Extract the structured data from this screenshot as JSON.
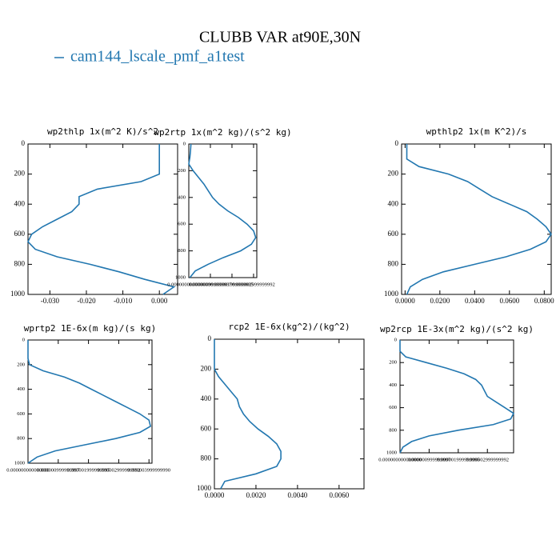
{
  "title": "CLUBB VAR at90E,30N",
  "legend": {
    "name": "cam144_lscale_pmf_a1test",
    "color": "#2277b0"
  },
  "chart_data": [
    {
      "type": "line",
      "title": "wp2thlp   1x(m^2 K)/s^2",
      "color": "#2277b0",
      "levels": [
        0,
        50,
        100,
        150,
        200,
        250,
        300,
        350,
        400,
        450,
        500,
        550,
        600,
        650,
        700,
        750,
        800,
        850,
        900,
        950,
        1000
      ],
      "values": [
        0.0,
        0.0,
        0.0,
        0.0,
        0.0,
        -0.005,
        -0.017,
        -0.022,
        -0.022,
        -0.024,
        -0.028,
        -0.032,
        -0.035,
        -0.036,
        -0.034,
        -0.028,
        -0.019,
        -0.011,
        -0.004,
        0.004,
        0.001
      ],
      "xlim": [
        -0.036,
        0.005
      ],
      "xticks": [
        {
          "value": -0.03,
          "label": "-0.030"
        },
        {
          "value": -0.02,
          "label": "-0.020"
        },
        {
          "value": -0.01,
          "label": "-0.010"
        },
        {
          "value": 0,
          "label": "0.000"
        }
      ],
      "ylim": [
        0,
        1000
      ],
      "y_inverted": true,
      "yticks": [
        0,
        200,
        400,
        600,
        800,
        1000
      ]
    },
    {
      "type": "line",
      "title": "wp2rtp  1x(m^2 kg)/(s^2 kg)",
      "color": "#2277b0",
      "levels": [
        0,
        50,
        100,
        150,
        200,
        250,
        300,
        350,
        400,
        450,
        500,
        550,
        600,
        650,
        700,
        750,
        800,
        850,
        900,
        950,
        1000
      ],
      "values": [
        1e-07,
        8e-08,
        5e-08,
        0,
        2e-07,
        4.5e-07,
        7e-07,
        9e-07,
        1.1e-06,
        1.4e-06,
        1.8e-06,
        2.3e-06,
        2.7e-06,
        3e-06,
        3.1e-06,
        2.9e-06,
        2.4e-06,
        1.6e-06,
        9e-07,
        3e-07,
        5e-08
      ],
      "xlim": [
        0,
        3.15e-06
      ],
      "xticks": [
        {
          "value": 0,
          "label": "0.000000000000000"
        },
        {
          "value": 1e-06,
          "label": "0.000000999999997"
        },
        {
          "value": 2e-06,
          "label": "0.000001999999995"
        },
        {
          "value": 3e-06,
          "label": "0.000002999999992"
        }
      ],
      "ylim": [
        0,
        1000
      ],
      "y_inverted": true,
      "yticks": [
        0,
        200,
        400,
        600,
        800,
        1000
      ]
    },
    {
      "type": "line",
      "title": "wpthlp2   1x(m K^2)/s",
      "color": "#2277b0",
      "levels": [
        0,
        50,
        100,
        150,
        200,
        250,
        300,
        350,
        400,
        450,
        500,
        550,
        600,
        650,
        700,
        750,
        800,
        850,
        900,
        950,
        1000
      ],
      "values": [
        0.001,
        0.001,
        0.001,
        0.008,
        0.025,
        0.036,
        0.043,
        0.05,
        0.06,
        0.07,
        0.076,
        0.081,
        0.084,
        0.081,
        0.072,
        0.058,
        0.04,
        0.022,
        0.01,
        0.003,
        0.001
      ],
      "xlim": [
        -0.002,
        0.084
      ],
      "xticks": [
        {
          "value": 0,
          "label": "0.0000"
        },
        {
          "value": 0.02,
          "label": "0.0200"
        },
        {
          "value": 0.04,
          "label": "0.0400"
        },
        {
          "value": 0.06,
          "label": "0.0600"
        },
        {
          "value": 0.08,
          "label": "0.0800"
        }
      ],
      "ylim": [
        0,
        1000
      ],
      "y_inverted": true,
      "yticks": [
        0,
        200,
        400,
        600,
        800,
        1000
      ]
    },
    {
      "type": "line",
      "title": "wprtp2  1E-6x(m kg)/(s kg)",
      "color": "#2277b0",
      "levels": [
        0,
        50,
        100,
        150,
        200,
        250,
        300,
        350,
        400,
        450,
        500,
        550,
        600,
        650,
        700,
        750,
        800,
        850,
        900,
        950,
        1000
      ],
      "values": [
        0,
        0,
        0,
        0,
        5e-08,
        5e-07,
        1.2e-06,
        1.7e-06,
        2.1e-06,
        2.5e-06,
        2.9e-06,
        3.3e-06,
        3.7e-06,
        4e-06,
        4.05e-06,
        3.7e-06,
        2.9e-06,
        1.9e-06,
        9e-07,
        3e-07,
        0
      ],
      "xlim": [
        0,
        4.1e-06
      ],
      "xticks": [
        {
          "value": 0,
          "label": "0.000000000000000"
        },
        {
          "value": 1e-06,
          "label": "0.000000999999997"
        },
        {
          "value": 2e-06,
          "label": "0.000001999999995"
        },
        {
          "value": 3e-06,
          "label": "0.000002999999992"
        },
        {
          "value": 4e-06,
          "label": "0.000003999999990"
        }
      ],
      "ylim": [
        0,
        1000
      ],
      "y_inverted": true,
      "yticks": [
        0,
        200,
        400,
        600,
        800,
        1000
      ]
    },
    {
      "type": "line",
      "title": "rcp2  1E-6x(kg^2)/(kg^2)",
      "color": "#2277b0",
      "levels": [
        0,
        50,
        100,
        150,
        200,
        250,
        300,
        350,
        400,
        450,
        500,
        550,
        600,
        650,
        700,
        750,
        800,
        850,
        900,
        950,
        1000
      ],
      "values": [
        0,
        0,
        0,
        0,
        0,
        0.0002,
        0.0005,
        0.0008,
        0.0011,
        0.0012,
        0.0014,
        0.0017,
        0.0021,
        0.0026,
        0.003,
        0.0032,
        0.0032,
        0.003,
        0.002,
        0.0005,
        0.0003
      ],
      "xlim": [
        0,
        0.0072
      ],
      "xticks": [
        {
          "value": 0,
          "label": "0.0000"
        },
        {
          "value": 0.002,
          "label": "0.0020"
        },
        {
          "value": 0.004,
          "label": "0.0040"
        },
        {
          "value": 0.006,
          "label": "0.0060"
        }
      ],
      "ylim": [
        0,
        1000
      ],
      "y_inverted": true,
      "yticks": [
        0,
        200,
        400,
        600,
        800,
        1000
      ]
    },
    {
      "type": "line",
      "title": "wp2rcp  1E-3x(m^2 kg)/(s^2 kg)",
      "color": "#2277b0",
      "levels": [
        0,
        50,
        100,
        150,
        200,
        250,
        300,
        350,
        400,
        450,
        500,
        550,
        600,
        650,
        700,
        750,
        800,
        850,
        900,
        950,
        1000
      ],
      "values": [
        0,
        0,
        0,
        2e-07,
        9e-07,
        1.6e-06,
        2.2e-06,
        2.6e-06,
        2.8e-06,
        2.9e-06,
        3e-06,
        3.3e-06,
        3.6e-06,
        3.9e-06,
        3.8e-06,
        3.2e-06,
        2e-06,
        1e-06,
        4e-07,
        1e-07,
        0
      ],
      "xlim": [
        0,
        3.9e-06
      ],
      "xticks": [
        {
          "value": 0,
          "label": "0.000000000000000"
        },
        {
          "value": 1e-06,
          "label": "0.000000999999997"
        },
        {
          "value": 2e-06,
          "label": "0.000001999999995"
        },
        {
          "value": 3e-06,
          "label": "0.000002999999992"
        }
      ],
      "ylim": [
        0,
        1000
      ],
      "y_inverted": true,
      "yticks": [
        0,
        200,
        400,
        600,
        800,
        1000
      ]
    }
  ]
}
